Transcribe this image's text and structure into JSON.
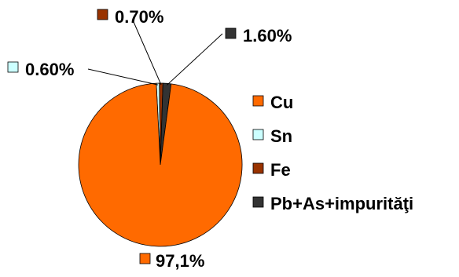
{
  "chart_data": {
    "type": "pie",
    "categories": [
      "Cu",
      "Sn",
      "Fe",
      "Pb+As+impurităţi"
    ],
    "values": [
      97.1,
      0.6,
      0.7,
      1.6
    ],
    "data_labels": [
      "97,1%",
      "0.60%",
      "0.70%",
      "1.60%"
    ],
    "colors": [
      "#FF6A00",
      "#CCFFFF",
      "#993300",
      "#333333"
    ],
    "legend_position": "right",
    "title": ""
  }
}
